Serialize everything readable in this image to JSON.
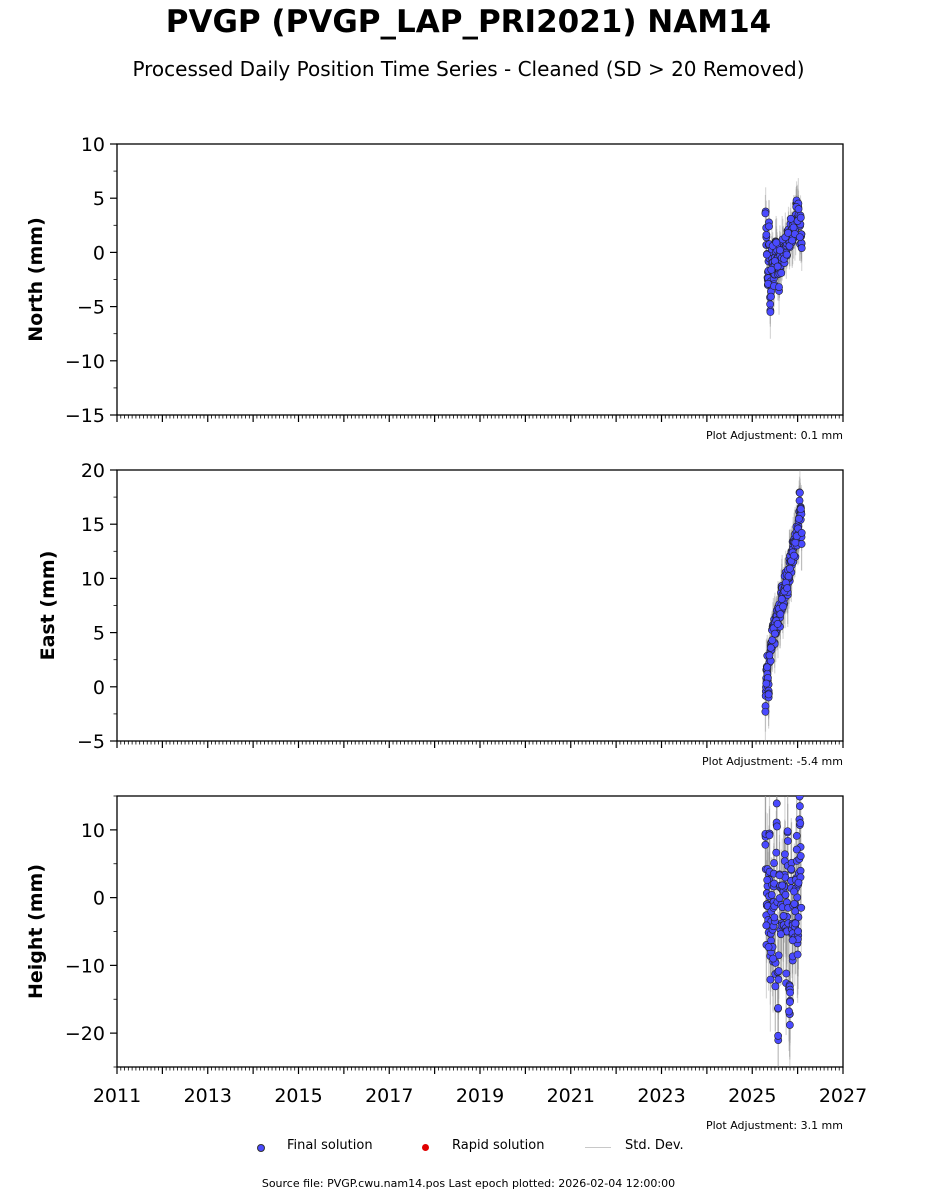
{
  "title": "PVGP (PVGP_LAP_PRI2021) NAM14",
  "subtitle": "Processed Daily Position Time Series - Cleaned (SD > 20 Removed)",
  "legend": {
    "final_label": "Final solution",
    "rapid_label": "Rapid solution",
    "std_label": "Std. Dev.",
    "final_color": "#4a4aff",
    "rapid_color": "#e00000",
    "std_color": "#c8c8c8"
  },
  "footer": "Source file: PVGP.cwu.nam14.pos  Last epoch plotted: 2026-02-04 12:00:00",
  "chart_data": [
    {
      "type": "scatter",
      "title": "",
      "xlabel": "",
      "ylabel": "North (mm)",
      "xlim": [
        2011,
        2027
      ],
      "ylim": [
        -15,
        10
      ],
      "yticks": [
        -15,
        -10,
        -5,
        0,
        5,
        10
      ],
      "ytick_labels": [
        "−15",
        "−10",
        "−5",
        "0",
        "5",
        "10"
      ],
      "plot_adjustment": "Plot Adjustment: 0.1 mm",
      "series": [
        {
          "name": "Final solution",
          "points": [
            [
              2025.29,
              3.6
            ],
            [
              2025.32,
              -0.2
            ],
            [
              2025.35,
              -2.9
            ],
            [
              2025.37,
              2.4
            ],
            [
              2025.4,
              -5.5
            ],
            [
              2025.42,
              -1.6
            ],
            [
              2025.45,
              0.6
            ],
            [
              2025.48,
              -3.1
            ],
            [
              2025.5,
              -0.8
            ],
            [
              2025.53,
              0.9
            ],
            [
              2025.56,
              -1.3
            ],
            [
              2025.59,
              -3.2
            ],
            [
              2025.61,
              0.2
            ],
            [
              2025.64,
              -1.9
            ],
            [
              2025.67,
              1.2
            ],
            [
              2025.7,
              -0.6
            ],
            [
              2025.73,
              1.4
            ],
            [
              2025.76,
              -0.2
            ],
            [
              2025.79,
              1.8
            ],
            [
              2025.82,
              0.6
            ],
            [
              2025.85,
              3.1
            ],
            [
              2025.88,
              1.1
            ],
            [
              2025.91,
              2.3
            ],
            [
              2025.94,
              1.7
            ],
            [
              2025.97,
              4.2
            ],
            [
              2026.0,
              2.9
            ],
            [
              2026.02,
              4.0
            ],
            [
              2026.05,
              1.4
            ],
            [
              2026.07,
              3.2
            ],
            [
              2026.09,
              0.4
            ]
          ],
          "stdev_mm": 1.8
        }
      ]
    },
    {
      "type": "scatter",
      "title": "",
      "xlabel": "",
      "ylabel": "East (mm)",
      "xlim": [
        2011,
        2027
      ],
      "ylim": [
        -5,
        20
      ],
      "yticks": [
        -5,
        0,
        5,
        10,
        15,
        20
      ],
      "ytick_labels": [
        "−5",
        "0",
        "5",
        "10",
        "15",
        "20"
      ],
      "plot_adjustment": "Plot Adjustment: -5.4 mm",
      "series": [
        {
          "name": "Final solution",
          "points": [
            [
              2025.29,
              -2.3
            ],
            [
              2025.31,
              0.3
            ],
            [
              2025.33,
              1.8
            ],
            [
              2025.36,
              -0.7
            ],
            [
              2025.38,
              2.9
            ],
            [
              2025.41,
              3.6
            ],
            [
              2025.44,
              4.3
            ],
            [
              2025.47,
              5.4
            ],
            [
              2025.5,
              4.9
            ],
            [
              2025.53,
              6.1
            ],
            [
              2025.56,
              5.8
            ],
            [
              2025.59,
              7.2
            ],
            [
              2025.62,
              6.7
            ],
            [
              2025.65,
              8.1
            ],
            [
              2025.68,
              7.4
            ],
            [
              2025.71,
              8.8
            ],
            [
              2025.74,
              9.6
            ],
            [
              2025.77,
              9.1
            ],
            [
              2025.8,
              10.2
            ],
            [
              2025.83,
              10.9
            ],
            [
              2025.86,
              11.6
            ],
            [
              2025.89,
              12.4
            ],
            [
              2025.92,
              12.1
            ],
            [
              2025.95,
              13.3
            ],
            [
              2025.98,
              13.9
            ],
            [
              2026.01,
              14.6
            ],
            [
              2026.03,
              15.5
            ],
            [
              2026.05,
              17.9
            ],
            [
              2026.07,
              16.4
            ],
            [
              2026.09,
              14.2
            ]
          ],
          "stdev_mm": 2.2
        }
      ]
    },
    {
      "type": "scatter",
      "title": "",
      "xlabel": "",
      "ylabel": "Height (mm)",
      "xlim": [
        2011,
        2027
      ],
      "ylim": [
        -25,
        15
      ],
      "yticks": [
        -20,
        -10,
        0,
        10
      ],
      "ytick_labels": [
        "−20",
        "−10",
        "0",
        "10"
      ],
      "xticks": [
        2011,
        2013,
        2015,
        2017,
        2019,
        2021,
        2023,
        2025,
        2027
      ],
      "xtick_labels": [
        "2011",
        "2013",
        "2015",
        "2017",
        "2019",
        "2021",
        "2023",
        "2025",
        "2027"
      ],
      "plot_adjustment": "Plot Adjustment: 3.1 mm",
      "series": [
        {
          "name": "Final solution",
          "points": [
            [
              2025.29,
              7.8
            ],
            [
              2025.31,
              -4.1
            ],
            [
              2025.33,
              2.6
            ],
            [
              2025.36,
              -7.3
            ],
            [
              2025.38,
              9.2
            ],
            [
              2025.4,
              -12.1
            ],
            [
              2025.43,
              0.4
            ],
            [
              2025.46,
              -9.0
            ],
            [
              2025.48,
              5.1
            ],
            [
              2025.51,
              -13.1
            ],
            [
              2025.54,
              13.9
            ],
            [
              2025.57,
              -20.4
            ],
            [
              2025.6,
              3.3
            ],
            [
              2025.63,
              -5.4
            ],
            [
              2025.66,
              1.8
            ],
            [
              2025.69,
              -2.7
            ],
            [
              2025.72,
              6.4
            ],
            [
              2025.75,
              -11.2
            ],
            [
              2025.78,
              9.8
            ],
            [
              2025.81,
              -16.8
            ],
            [
              2025.83,
              -15.4
            ],
            [
              2025.86,
              4.2
            ],
            [
              2025.89,
              -6.3
            ],
            [
              2025.92,
              0.9
            ],
            [
              2025.95,
              -3.8
            ],
            [
              2025.98,
              7.1
            ],
            [
              2026.0,
              -8.4
            ],
            [
              2026.02,
              2.2
            ],
            [
              2026.05,
              13.5
            ],
            [
              2026.08,
              -1.5
            ]
          ],
          "stdev_mm": 6.5
        }
      ]
    }
  ]
}
